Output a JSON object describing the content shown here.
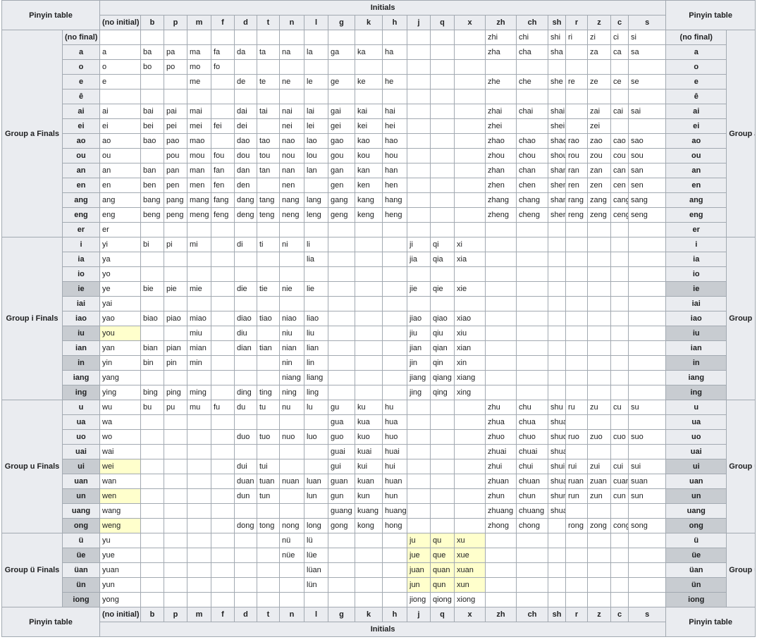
{
  "corner_label": "Pinyin table",
  "initials_label": "Initials",
  "initials": [
    "(no initial)",
    "b",
    "p",
    "m",
    "f",
    "d",
    "t",
    "n",
    "l",
    "g",
    "k",
    "h",
    "j",
    "q",
    "x",
    "zh",
    "ch",
    "sh",
    "r",
    "z",
    "c",
    "s"
  ],
  "highlight_color": "#ffffcc",
  "highlight_final_color": "#c8ccd1",
  "groups": [
    {
      "name": "Group a Finals",
      "rows": [
        {
          "final": "(no final)",
          "cells": [
            "",
            "",
            "",
            "",
            "",
            "",
            "",
            "",
            "",
            "",
            "",
            "",
            "",
            "",
            "",
            "zhi",
            "chi",
            "shi",
            "ri",
            "zi",
            "ci",
            "si"
          ]
        },
        {
          "final": "a",
          "cells": [
            "a",
            "ba",
            "pa",
            "ma",
            "fa",
            "da",
            "ta",
            "na",
            "la",
            "ga",
            "ka",
            "ha",
            "",
            "",
            "",
            "zha",
            "cha",
            "sha",
            "",
            "za",
            "ca",
            "sa"
          ]
        },
        {
          "final": "o",
          "cells": [
            "o",
            "bo",
            "po",
            "mo",
            "fo",
            "",
            "",
            "",
            "",
            "",
            "",
            "",
            "",
            "",
            "",
            "",
            "",
            "",
            "",
            "",
            "",
            ""
          ]
        },
        {
          "final": "e",
          "cells": [
            "e",
            "",
            "",
            "me",
            "",
            "de",
            "te",
            "ne",
            "le",
            "ge",
            "ke",
            "he",
            "",
            "",
            "",
            "zhe",
            "che",
            "she",
            "re",
            "ze",
            "ce",
            "se"
          ]
        },
        {
          "final": "ê",
          "cells": [
            "",
            "",
            "",
            "",
            "",
            "",
            "",
            "",
            "",
            "",
            "",
            "",
            "",
            "",
            "",
            "",
            "",
            "",
            "",
            "",
            "",
            ""
          ]
        },
        {
          "final": "ai",
          "cells": [
            "ai",
            "bai",
            "pai",
            "mai",
            "",
            "dai",
            "tai",
            "nai",
            "lai",
            "gai",
            "kai",
            "hai",
            "",
            "",
            "",
            "zhai",
            "chai",
            "shai",
            "",
            "zai",
            "cai",
            "sai"
          ]
        },
        {
          "final": "ei",
          "cells": [
            "ei",
            "bei",
            "pei",
            "mei",
            "fei",
            "dei",
            "",
            "nei",
            "lei",
            "gei",
            "kei",
            "hei",
            "",
            "",
            "",
            "zhei",
            "",
            "shei",
            "",
            "zei",
            "",
            ""
          ]
        },
        {
          "final": "ao",
          "cells": [
            "ao",
            "bao",
            "pao",
            "mao",
            "",
            "dao",
            "tao",
            "nao",
            "lao",
            "gao",
            "kao",
            "hao",
            "",
            "",
            "",
            "zhao",
            "chao",
            "shao",
            "rao",
            "zao",
            "cao",
            "sao"
          ]
        },
        {
          "final": "ou",
          "cells": [
            "ou",
            "",
            "pou",
            "mou",
            "fou",
            "dou",
            "tou",
            "nou",
            "lou",
            "gou",
            "kou",
            "hou",
            "",
            "",
            "",
            "zhou",
            "chou",
            "shou",
            "rou",
            "zou",
            "cou",
            "sou"
          ]
        },
        {
          "final": "an",
          "cells": [
            "an",
            "ban",
            "pan",
            "man",
            "fan",
            "dan",
            "tan",
            "nan",
            "lan",
            "gan",
            "kan",
            "han",
            "",
            "",
            "",
            "zhan",
            "chan",
            "shan",
            "ran",
            "zan",
            "can",
            "san"
          ]
        },
        {
          "final": "en",
          "cells": [
            "en",
            "ben",
            "pen",
            "men",
            "fen",
            "den",
            "",
            "nen",
            "",
            "gen",
            "ken",
            "hen",
            "",
            "",
            "",
            "zhen",
            "chen",
            "shen",
            "ren",
            "zen",
            "cen",
            "sen"
          ]
        },
        {
          "final": "ang",
          "cells": [
            "ang",
            "bang",
            "pang",
            "mang",
            "fang",
            "dang",
            "tang",
            "nang",
            "lang",
            "gang",
            "kang",
            "hang",
            "",
            "",
            "",
            "zhang",
            "chang",
            "shang",
            "rang",
            "zang",
            "cang",
            "sang"
          ]
        },
        {
          "final": "eng",
          "cells": [
            "eng",
            "beng",
            "peng",
            "meng",
            "feng",
            "deng",
            "teng",
            "neng",
            "leng",
            "geng",
            "keng",
            "heng",
            "",
            "",
            "",
            "zheng",
            "cheng",
            "sheng",
            "reng",
            "zeng",
            "ceng",
            "seng"
          ]
        },
        {
          "final": "er",
          "cells": [
            "er",
            "",
            "",
            "",
            "",
            "",
            "",
            "",
            "",
            "",
            "",
            "",
            "",
            "",
            "",
            "",
            "",
            "",
            "",
            "",
            "",
            ""
          ]
        }
      ]
    },
    {
      "name": "Group i Finals",
      "rows": [
        {
          "final": "i",
          "cells": [
            "yi",
            "bi",
            "pi",
            "mi",
            "",
            "di",
            "ti",
            "ni",
            "li",
            "",
            "",
            "",
            "ji",
            "qi",
            "xi",
            "",
            "",
            "",
            "",
            "",
            "",
            ""
          ]
        },
        {
          "final": "ia",
          "cells": [
            "ya",
            "",
            "",
            "",
            "",
            "",
            "",
            "",
            "lia",
            "",
            "",
            "",
            "jia",
            "qia",
            "xia",
            "",
            "",
            "",
            "",
            "",
            "",
            ""
          ]
        },
        {
          "final": "io",
          "cells": [
            "yo",
            "",
            "",
            "",
            "",
            "",
            "",
            "",
            "",
            "",
            "",
            "",
            "",
            "",
            "",
            "",
            "",
            "",
            "",
            "",
            "",
            ""
          ]
        },
        {
          "final": "ie",
          "final_hl": true,
          "cells": [
            "ye",
            "bie",
            "pie",
            "mie",
            "",
            "die",
            "tie",
            "nie",
            "lie",
            "",
            "",
            "",
            "jie",
            "qie",
            "xie",
            "",
            "",
            "",
            "",
            "",
            "",
            ""
          ]
        },
        {
          "final": "iai",
          "cells": [
            "yai",
            "",
            "",
            "",
            "",
            "",
            "",
            "",
            "",
            "",
            "",
            "",
            "",
            "",
            "",
            "",
            "",
            "",
            "",
            "",
            "",
            ""
          ]
        },
        {
          "final": "iao",
          "cells": [
            "yao",
            "biao",
            "piao",
            "miao",
            "",
            "diao",
            "tiao",
            "niao",
            "liao",
            "",
            "",
            "",
            "jiao",
            "qiao",
            "xiao",
            "",
            "",
            "",
            "",
            "",
            "",
            ""
          ]
        },
        {
          "final": "iu",
          "final_hl": true,
          "hl": [
            0
          ],
          "cells": [
            "you",
            "",
            "",
            "miu",
            "",
            "diu",
            "",
            "niu",
            "liu",
            "",
            "",
            "",
            "jiu",
            "qiu",
            "xiu",
            "",
            "",
            "",
            "",
            "",
            "",
            ""
          ]
        },
        {
          "final": "ian",
          "cells": [
            "yan",
            "bian",
            "pian",
            "mian",
            "",
            "dian",
            "tian",
            "nian",
            "lian",
            "",
            "",
            "",
            "jian",
            "qian",
            "xian",
            "",
            "",
            "",
            "",
            "",
            "",
            ""
          ]
        },
        {
          "final": "in",
          "final_hl": true,
          "cells": [
            "yin",
            "bin",
            "pin",
            "min",
            "",
            "",
            "",
            "nin",
            "lin",
            "",
            "",
            "",
            "jin",
            "qin",
            "xin",
            "",
            "",
            "",
            "",
            "",
            "",
            ""
          ]
        },
        {
          "final": "iang",
          "cells": [
            "yang",
            "",
            "",
            "",
            "",
            "",
            "",
            "niang",
            "liang",
            "",
            "",
            "",
            "jiang",
            "qiang",
            "xiang",
            "",
            "",
            "",
            "",
            "",
            "",
            ""
          ]
        },
        {
          "final": "ing",
          "final_hl": true,
          "cells": [
            "ying",
            "bing",
            "ping",
            "ming",
            "",
            "ding",
            "ting",
            "ning",
            "ling",
            "",
            "",
            "",
            "jing",
            "qing",
            "xing",
            "",
            "",
            "",
            "",
            "",
            "",
            ""
          ]
        }
      ]
    },
    {
      "name": "Group u Finals",
      "rows": [
        {
          "final": "u",
          "cells": [
            "wu",
            "bu",
            "pu",
            "mu",
            "fu",
            "du",
            "tu",
            "nu",
            "lu",
            "gu",
            "ku",
            "hu",
            "",
            "",
            "",
            "zhu",
            "chu",
            "shu",
            "ru",
            "zu",
            "cu",
            "su"
          ]
        },
        {
          "final": "ua",
          "cells": [
            "wa",
            "",
            "",
            "",
            "",
            "",
            "",
            "",
            "",
            "gua",
            "kua",
            "hua",
            "",
            "",
            "",
            "zhua",
            "chua",
            "shua",
            "",
            "",
            "",
            ""
          ]
        },
        {
          "final": "uo",
          "cells": [
            "wo",
            "",
            "",
            "",
            "",
            "duo",
            "tuo",
            "nuo",
            "luo",
            "guo",
            "kuo",
            "huo",
            "",
            "",
            "",
            "zhuo",
            "chuo",
            "shuo",
            "ruo",
            "zuo",
            "cuo",
            "suo"
          ]
        },
        {
          "final": "uai",
          "cells": [
            "wai",
            "",
            "",
            "",
            "",
            "",
            "",
            "",
            "",
            "guai",
            "kuai",
            "huai",
            "",
            "",
            "",
            "zhuai",
            "chuai",
            "shuai",
            "",
            "",
            "",
            ""
          ]
        },
        {
          "final": "ui",
          "final_hl": true,
          "hl": [
            0
          ],
          "cells": [
            "wei",
            "",
            "",
            "",
            "",
            "dui",
            "tui",
            "",
            "",
            "gui",
            "kui",
            "hui",
            "",
            "",
            "",
            "zhui",
            "chui",
            "shui",
            "rui",
            "zui",
            "cui",
            "sui"
          ]
        },
        {
          "final": "uan",
          "cells": [
            "wan",
            "",
            "",
            "",
            "",
            "duan",
            "tuan",
            "nuan",
            "luan",
            "guan",
            "kuan",
            "huan",
            "",
            "",
            "",
            "zhuan",
            "chuan",
            "shuan",
            "ruan",
            "zuan",
            "cuan",
            "suan"
          ]
        },
        {
          "final": "un",
          "final_hl": true,
          "hl": [
            0
          ],
          "cells": [
            "wen",
            "",
            "",
            "",
            "",
            "dun",
            "tun",
            "",
            "lun",
            "gun",
            "kun",
            "hun",
            "",
            "",
            "",
            "zhun",
            "chun",
            "shun",
            "run",
            "zun",
            "cun",
            "sun"
          ]
        },
        {
          "final": "uang",
          "cells": [
            "wang",
            "",
            "",
            "",
            "",
            "",
            "",
            "",
            "",
            "guang",
            "kuang",
            "huang",
            "",
            "",
            "",
            "zhuang",
            "chuang",
            "shuang",
            "",
            "",
            "",
            ""
          ]
        },
        {
          "final": "ong",
          "final_hl": true,
          "hl": [
            0
          ],
          "cells": [
            "weng",
            "",
            "",
            "",
            "",
            "dong",
            "tong",
            "nong",
            "long",
            "gong",
            "kong",
            "hong",
            "",
            "",
            "",
            "zhong",
            "chong",
            "",
            "rong",
            "zong",
            "cong",
            "song"
          ]
        }
      ]
    },
    {
      "name": "Group ü Finals",
      "rows": [
        {
          "final": "ü",
          "hl": [
            12,
            13,
            14
          ],
          "cells": [
            "yu",
            "",
            "",
            "",
            "",
            "",
            "",
            "nü",
            "lü",
            "",
            "",
            "",
            "ju",
            "qu",
            "xu",
            "",
            "",
            "",
            "",
            "",
            "",
            ""
          ]
        },
        {
          "final": "üe",
          "final_hl": true,
          "hl": [
            12,
            13,
            14
          ],
          "cells": [
            "yue",
            "",
            "",
            "",
            "",
            "",
            "",
            "nüe",
            "lüe",
            "",
            "",
            "",
            "jue",
            "que",
            "xue",
            "",
            "",
            "",
            "",
            "",
            "",
            ""
          ]
        },
        {
          "final": "üan",
          "hl": [
            12,
            13,
            14
          ],
          "cells": [
            "yuan",
            "",
            "",
            "",
            "",
            "",
            "",
            "",
            "lüan",
            "",
            "",
            "",
            "juan",
            "quan",
            "xuan",
            "",
            "",
            "",
            "",
            "",
            "",
            ""
          ]
        },
        {
          "final": "ün",
          "final_hl": true,
          "hl": [
            12,
            13,
            14
          ],
          "cells": [
            "yun",
            "",
            "",
            "",
            "",
            "",
            "",
            "",
            "lün",
            "",
            "",
            "",
            "jun",
            "qun",
            "xun",
            "",
            "",
            "",
            "",
            "",
            "",
            ""
          ]
        },
        {
          "final": "iong",
          "final_hl": true,
          "cells": [
            "yong",
            "",
            "",
            "",
            "",
            "",
            "",
            "",
            "",
            "",
            "",
            "",
            "jiong",
            "qiong",
            "xiong",
            "",
            "",
            "",
            "",
            "",
            "",
            ""
          ]
        }
      ]
    }
  ]
}
